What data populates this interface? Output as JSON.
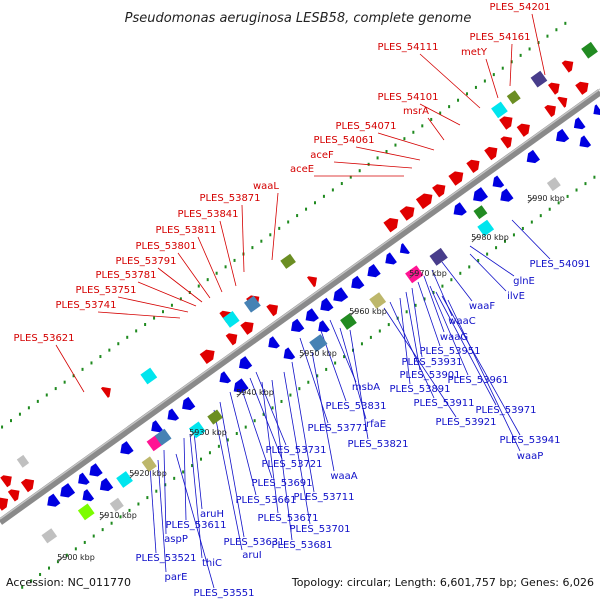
{
  "title": "Pseudomonas aeruginosa LESB58, complete genome",
  "footer": {
    "accession": "Accession: NC_011770",
    "stats": "Topology: circular; Length: 6,601,757 bp; Genes: 6,026"
  },
  "colors": {
    "backbone": "#8a8a8a",
    "forward_genes": "#e00000",
    "reverse_genes": "#0000e0",
    "gc_dots": "#1f8a1f",
    "forward_labels": "#d40000",
    "reverse_labels": "#1010c8",
    "cog_palette": [
      "#00e5ee",
      "#4682b4",
      "#6b8e23",
      "#228b22",
      "#ff1493",
      "#bdb76b",
      "#483d8b",
      "#7cfc00",
      "#c0c0c0"
    ]
  },
  "ticks": [
    "5900 kbp",
    "5910 kbp",
    "5920 kbp",
    "5930 kbp",
    "5940 kbp",
    "5950 kbp",
    "5960 kbp",
    "5970 kbp",
    "5980 kbp",
    "5990 kbp"
  ],
  "forward_labels": [
    "PLES_54201",
    "PLES_54161",
    "metY",
    "PLES_54111",
    "PLES_54101",
    "msrA",
    "PLES_54071",
    "PLES_54061",
    "aceF",
    "aceE",
    "waaL",
    "PLES_53871",
    "PLES_53841",
    "PLES_53811",
    "PLES_53801",
    "PLES_53791",
    "PLES_53781",
    "PLES_53751",
    "PLES_53741",
    "PLES_53621"
  ],
  "reverse_labels": [
    "PLES_54091",
    "glnE",
    "ilvE",
    "waaF",
    "waaC",
    "waaG",
    "PLES_53951",
    "PLES_53931",
    "PLES_53901",
    "PLES_53891",
    "PLES_53961",
    "PLES_53911",
    "PLES_53971",
    "PLES_53921",
    "PLES_53941",
    "waaP",
    "msbA",
    "PLES_53831",
    "PLES_53771",
    "rfaE",
    "PLES_53821",
    "PLES_53731",
    "PLES_53721",
    "waaA",
    "PLES_53691",
    "PLES_53711",
    "PLES_53661",
    "aruH",
    "PLES_53671",
    "PLES_53611",
    "PLES_53701",
    "PLES_53631",
    "PLES_53681",
    "aspP",
    "aruI",
    "thiC",
    "PLES_53521",
    "parE",
    "PLES_53551"
  ]
}
